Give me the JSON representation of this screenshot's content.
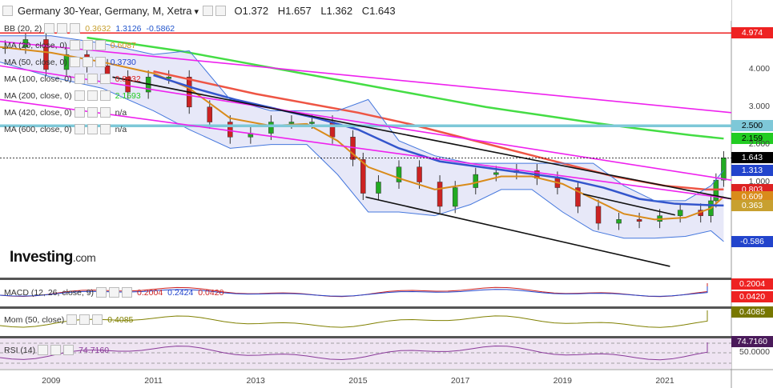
{
  "header": {
    "title": "Germany 30-Year, Germany, M, Xetra",
    "open": "O1.372",
    "high": "H1.657",
    "low": "L1.362",
    "close": "C1.643"
  },
  "indicators": [
    {
      "label": "BB (20, 2)",
      "values": [
        "0.3632",
        "1.3126",
        "-0.5862"
      ],
      "colors": [
        "#c8a030",
        "#2255cc",
        "#2255cc"
      ]
    },
    {
      "label": "MA (20, close, 0)",
      "values": [
        "0.6087"
      ],
      "colors": [
        "#d98b1a"
      ]
    },
    {
      "label": "MA (50, close, 0)",
      "values": [
        "0.3730"
      ],
      "colors": [
        "#2244cc"
      ]
    },
    {
      "label": "MA (100, close, 0)",
      "values": [
        "0.8032"
      ],
      "colors": [
        "#dd2222"
      ]
    },
    {
      "label": "MA (200, close, 0)",
      "values": [
        "2.1593"
      ],
      "colors": [
        "#22cc22"
      ]
    },
    {
      "label": "MA (420, close, 0)",
      "values": [
        "n/a"
      ],
      "colors": [
        "#333333"
      ]
    },
    {
      "label": "MA (600, close, 0)",
      "values": [
        "n/a"
      ],
      "colors": [
        "#333333"
      ]
    }
  ],
  "panels": {
    "macd": {
      "label": "MACD (12, 26, close, 9)",
      "values": [
        "0.2004",
        "0.2424",
        "0.0420"
      ],
      "colors": [
        "#cc2222",
        "#2244cc",
        "#cc2222"
      ]
    },
    "mom": {
      "label": "Mom (50, close)",
      "values": [
        "0.4085"
      ],
      "colors": [
        "#808000"
      ]
    },
    "rsi": {
      "label": "RSI (14)",
      "values": [
        "74.7160"
      ],
      "colors": [
        "#8a3a9a"
      ]
    }
  },
  "logo": {
    "text": "Investing",
    "suffix": ".com"
  },
  "price_labels": [
    {
      "text": "4.974",
      "value": 4.974,
      "color": "#ee2222"
    },
    {
      "text": "2.500",
      "value": 2.5,
      "color": "#7ec8d8"
    },
    {
      "text": "2.159",
      "value": 2.159,
      "color": "#22cc22"
    },
    {
      "text": "1.643",
      "value": 1.643,
      "color": "#000000"
    },
    {
      "text": "1.313",
      "value": 1.313,
      "color": "#2244cc"
    },
    {
      "text": "0.803",
      "value": 0.803,
      "color": "#dd2222"
    },
    {
      "text": "0.609",
      "value": 0.609,
      "color": "#d98b1a"
    },
    {
      "text": "0.373",
      "value": 0.373,
      "color": "#2244cc"
    },
    {
      "text": "0.363",
      "value": 0.363,
      "color": "#c8a030"
    },
    {
      "text": "-0.586",
      "value": -0.586,
      "color": "#2244cc"
    }
  ],
  "panel_labels": [
    {
      "text": "0.2004",
      "color": "#ee2222"
    },
    {
      "text": "0.0420",
      "color": "#ee2222"
    },
    {
      "text": "0.4085",
      "color": "#777700"
    },
    {
      "text": "74.7160",
      "color": "#4a1a5a"
    }
  ],
  "rsi_ticks": [
    "50.0000"
  ],
  "chart_data": {
    "type": "line",
    "title": "Germany 30-Year, Germany, M, Xetra",
    "ohlc_last": {
      "open": 1.372,
      "high": 1.657,
      "low": 1.362,
      "close": 1.643
    },
    "y_ticks": [
      "4.000",
      "3.000",
      "2.000",
      "1.000"
    ],
    "y_tick_values": [
      4.0,
      3.0,
      2.0,
      1.0
    ],
    "x_ticks": [
      "2009",
      "2011",
      "2013",
      "2015",
      "2017",
      "2019",
      "2021"
    ],
    "x_tick_values": [
      2009,
      2011,
      2013,
      2015,
      2017,
      2019,
      2021
    ],
    "xlim": [
      2008.0,
      2022.3
    ],
    "ylim": [
      -1.55,
      5.3
    ],
    "series": [
      {
        "name": "Germany 30-Year",
        "type": "candlestick",
        "color": "#22aa22",
        "x": [
          2008.1,
          2008.5,
          2008.9,
          2009.3,
          2009.7,
          2010.1,
          2010.5,
          2010.9,
          2011.3,
          2011.7,
          2012.1,
          2012.5,
          2012.9,
          2013.3,
          2013.7,
          2014.1,
          2014.5,
          2014.9,
          2015.1,
          2015.4,
          2015.8,
          2016.2,
          2016.6,
          2016.9,
          2017.3,
          2017.7,
          2018.1,
          2018.5,
          2018.9,
          2019.3,
          2019.7,
          2020.1,
          2020.5,
          2020.9,
          2021.3,
          2021.7,
          2021.9,
          2022.0,
          2022.15
        ],
        "y": [
          4.6,
          4.8,
          4.0,
          4.4,
          4.1,
          3.8,
          3.4,
          3.8,
          3.8,
          3.0,
          2.6,
          2.2,
          2.3,
          2.6,
          2.6,
          2.6,
          2.2,
          1.6,
          0.7,
          1.0,
          1.4,
          1.0,
          0.35,
          0.85,
          1.2,
          1.25,
          1.3,
          1.1,
          0.85,
          0.35,
          -0.1,
          0.0,
          -0.05,
          0.1,
          0.25,
          0.1,
          0.5,
          1.05,
          1.643
        ]
      },
      {
        "name": "MA (20, close, 0)",
        "color": "#d98b1a",
        "x": [
          2008.0,
          2009.0,
          2010.0,
          2011.0,
          2011.7,
          2012.5,
          2013.3,
          2014.0,
          2014.6,
          2015.2,
          2015.8,
          2016.5,
          2017.2,
          2017.8,
          2018.4,
          2019.0,
          2019.6,
          2020.2,
          2020.8,
          2021.4,
          2021.9,
          2022.15
        ],
        "y": [
          4.6,
          4.45,
          4.2,
          3.9,
          3.5,
          2.7,
          2.5,
          2.55,
          2.1,
          1.4,
          1.1,
          0.8,
          0.95,
          1.15,
          1.15,
          0.95,
          0.55,
          0.15,
          0.0,
          0.05,
          0.3,
          0.609
        ]
      },
      {
        "name": "MA (50, close, 0)",
        "color": "#3355cc",
        "x": [
          2011.0,
          2011.8,
          2012.6,
          2013.4,
          2014.2,
          2015.0,
          2015.8,
          2016.6,
          2017.4,
          2018.2,
          2019.0,
          2019.8,
          2020.5,
          2021.2,
          2021.9,
          2022.15
        ],
        "y": [
          3.85,
          3.5,
          3.2,
          2.95,
          2.7,
          2.4,
          1.9,
          1.55,
          1.4,
          1.25,
          1.1,
          0.85,
          0.55,
          0.42,
          0.38,
          0.373
        ]
      },
      {
        "name": "MA (100, close, 0)",
        "color": "#ee5544",
        "x": [
          2011.0,
          2012.0,
          2013.0,
          2014.0,
          2015.0,
          2016.0,
          2017.0,
          2018.0,
          2019.0,
          2020.0,
          2021.0,
          2021.8,
          2022.15
        ],
        "y": [
          3.95,
          3.65,
          3.35,
          3.1,
          2.85,
          2.55,
          2.2,
          1.85,
          1.5,
          1.15,
          0.9,
          0.8,
          0.803
        ]
      },
      {
        "name": "MA (200, close, 0)",
        "color": "#44dd44",
        "x": [
          2009.7,
          2010.5,
          2011.5,
          2012.5,
          2013.5,
          2014.5,
          2015.5,
          2016.5,
          2017.5,
          2018.5,
          2019.5,
          2020.5,
          2021.5,
          2022.15
        ],
        "y": [
          4.85,
          4.7,
          4.5,
          4.25,
          4.0,
          3.75,
          3.5,
          3.25,
          3.0,
          2.8,
          2.6,
          2.42,
          2.25,
          2.159
        ]
      },
      {
        "name": "BB upper",
        "color": "#4477dd",
        "x": [
          2008.0,
          2009.0,
          2010.0,
          2011.0,
          2011.7,
          2012.5,
          2013.3,
          2014.0,
          2014.6,
          2015.2,
          2015.8,
          2016.5,
          2017.2,
          2017.8,
          2018.4,
          2019.0,
          2019.6,
          2020.2,
          2020.8,
          2021.4,
          2021.9,
          2022.15
        ],
        "y": [
          4.9,
          4.9,
          4.7,
          4.4,
          4.5,
          3.2,
          2.9,
          2.9,
          2.9,
          3.2,
          2.1,
          1.7,
          1.5,
          1.5,
          1.5,
          1.5,
          1.5,
          0.9,
          0.5,
          0.5,
          0.9,
          1.313
        ]
      },
      {
        "name": "BB lower",
        "color": "#4477dd",
        "x": [
          2008.0,
          2009.0,
          2010.0,
          2011.0,
          2011.7,
          2012.5,
          2013.3,
          2014.0,
          2014.6,
          2015.2,
          2015.8,
          2016.5,
          2017.2,
          2017.8,
          2018.4,
          2019.0,
          2019.6,
          2020.2,
          2020.8,
          2021.4,
          2021.9,
          2022.15
        ],
        "y": [
          4.2,
          3.8,
          3.5,
          2.9,
          2.4,
          1.9,
          2.0,
          2.0,
          1.2,
          0.2,
          0.2,
          0.1,
          0.4,
          0.8,
          0.8,
          0.2,
          -0.3,
          -0.5,
          -0.5,
          -0.45,
          -0.3,
          -0.586
        ]
      },
      {
        "name": "Resistance 4.974",
        "color": "#ee2222",
        "x": [
          2008.0,
          2022.3
        ],
        "y": [
          4.974,
          4.974
        ]
      },
      {
        "name": "Level 2.500",
        "color": "#7ec8d8",
        "x": [
          2008.0,
          2022.3
        ],
        "y": [
          2.5,
          2.5
        ]
      },
      {
        "name": "Trend magenta upper",
        "color": "#ee22ee",
        "x": [
          2008.0,
          2022.3
        ],
        "y": [
          4.75,
          2.85
        ]
      },
      {
        "name": "Trend magenta middle",
        "color": "#ee22ee",
        "x": [
          2008.0,
          2022.3
        ],
        "y": [
          4.1,
          1.05
        ]
      },
      {
        "name": "Trend magenta lower",
        "color": "#ee22ee",
        "x": [
          2008.0,
          2022.3
        ],
        "y": [
          3.2,
          0.55
        ]
      },
      {
        "name": "Channel upper",
        "color": "#111111",
        "x": [
          2010.2,
          2022.3
        ],
        "y": [
          3.8,
          0.55
        ]
      },
      {
        "name": "Channel lower",
        "color": "#111111",
        "x": [
          2015.15,
          2021.1
        ],
        "y": [
          0.6,
          -1.25
        ]
      },
      {
        "name": "Trend short",
        "color": "#111111",
        "x": [
          2019.4,
          2021.2
        ],
        "y": [
          0.68,
          0.12
        ]
      },
      {
        "name": "Level 1.643",
        "color": "#000000",
        "x": [
          2008.0,
          2022.3
        ],
        "y": [
          1.643,
          1.643
        ]
      }
    ],
    "panels": {
      "macd": {
        "macd": 0.2004,
        "signal": 0.2424,
        "histogram": 0.042
      },
      "mom": {
        "value": 0.4085
      },
      "rsi": {
        "value": 74.716,
        "levels": [
          30,
          50,
          70
        ]
      }
    }
  }
}
